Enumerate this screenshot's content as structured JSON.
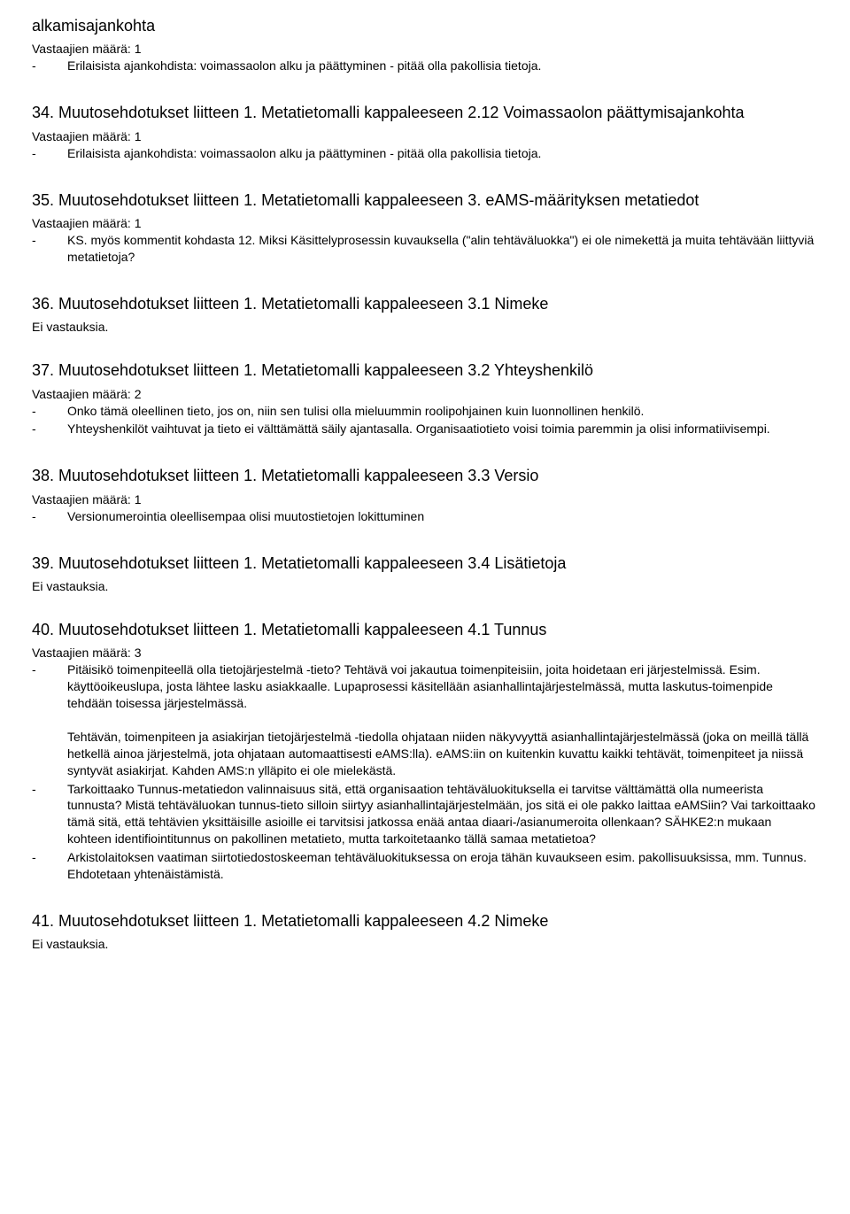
{
  "labels": {
    "count_prefix": "Vastaajien määrä: ",
    "no_answer": "Ei vastauksia."
  },
  "sections": [
    {
      "id": "s33b",
      "title_pre": "alkamisajankohta",
      "count": 1,
      "bullets": [
        "Erilaisista ajankohdista:  voimassaolon alku ja päättyminen - pitää olla pakollisia tietoja."
      ]
    },
    {
      "id": "s34",
      "title": "34. Muutosehdotukset liitteen 1. Metatietomalli kappaleeseen 2.12 Voimassaolon päättymisajankohta",
      "count": 1,
      "bullets": [
        "Erilaisista ajankohdista:  voimassaolon alku ja päättyminen - pitää olla pakollisia tietoja."
      ]
    },
    {
      "id": "s35",
      "title": "35. Muutosehdotukset liitteen 1. Metatietomalli kappaleeseen 3. eAMS-määrityksen metatiedot",
      "count": 1,
      "bullets": [
        "KS. myös kommentit kohdasta 12. Miksi Käsittelyprosessin kuvauksella (\"alin tehtäväluokka\") ei ole nimekettä ja muita tehtävään liittyviä metatietoja?"
      ]
    },
    {
      "id": "s36",
      "title": "36. Muutosehdotukset liitteen 1. Metatietomalli kappaleeseen 3.1 Nimeke",
      "no_answer": true
    },
    {
      "id": "s37",
      "title": "37. Muutosehdotukset liitteen 1. Metatietomalli kappaleeseen 3.2 Yhteyshenkilö",
      "count": 2,
      "bullets": [
        "Onko tämä oleellinen tieto, jos on, niin sen tulisi olla mieluummin roolipohjainen kuin luonnollinen henkilö.",
        "Yhteyshenkilöt vaihtuvat ja tieto ei välttämättä säily ajantasalla. Organisaatiotieto voisi toimia paremmin ja olisi informatiivisempi."
      ]
    },
    {
      "id": "s38",
      "title": "38. Muutosehdotukset liitteen 1. Metatietomalli kappaleeseen 3.3 Versio",
      "count": 1,
      "bullets": [
        "Versionumerointia oleellisempaa olisi muutostietojen lokittuminen"
      ]
    },
    {
      "id": "s39",
      "title": "39. Muutosehdotukset liitteen 1. Metatietomalli kappaleeseen 3.4 Lisätietoja",
      "no_answer": true
    },
    {
      "id": "s40",
      "title": "40. Muutosehdotukset liitteen 1. Metatietomalli kappaleeseen 4.1 Tunnus",
      "count": 3,
      "bullets": [
        "Pitäisikö toimenpiteellä olla tietojärjestelmä -tieto? Tehtävä voi jakautua toimenpiteisiin, joita hoidetaan eri järjestelmissä. Esim. käyttöoikeuslupa, josta lähtee lasku asiakkaalle. Lupaprosessi käsitellään asianhallintajärjestelmässä, mutta laskutus-toimenpide tehdään toisessa järjestelmässä.\n\nTehtävän, toimenpiteen ja asiakirjan tietojärjestelmä -tiedolla ohjataan niiden näkyvyyttä asianhallintajärjestelmässä (joka on meillä tällä hetkellä ainoa järjestelmä, jota ohjataan automaattisesti eAMS:lla). eAMS:iin on kuitenkin kuvattu kaikki tehtävät, toimenpiteet ja niissä syntyvät asiakirjat. Kahden AMS:n ylläpito ei ole mielekästä.",
        "Tarkoittaako Tunnus-metatiedon valinnaisuus sitä, että organisaation tehtäväluokituksella ei tarvitse välttämättä olla numeerista tunnusta? Mistä tehtäväluokan tunnus-tieto silloin siirtyy asianhallintajärjestelmään, jos sitä ei ole pakko laittaa eAMSiin? Vai tarkoittaako tämä sitä, että tehtävien yksittäisille asioille ei tarvitsisi jatkossa enää antaa diaari-/asianumeroita ollenkaan? SÄHKE2:n mukaan kohteen identifiointitunnus on pakollinen metatieto, mutta tarkoitetaanko tällä samaa metatietoa?",
        "Arkistolaitoksen vaatiman siirtotiedostoskeeman tehtäväluokituksessa on eroja tähän kuvaukseen esim. pakollisuuksissa, mm. Tunnus.     Ehdotetaan yhtenäistämistä."
      ]
    },
    {
      "id": "s41",
      "title": "41. Muutosehdotukset liitteen 1. Metatietomalli kappaleeseen 4.2 Nimeke",
      "no_answer": true
    }
  ]
}
